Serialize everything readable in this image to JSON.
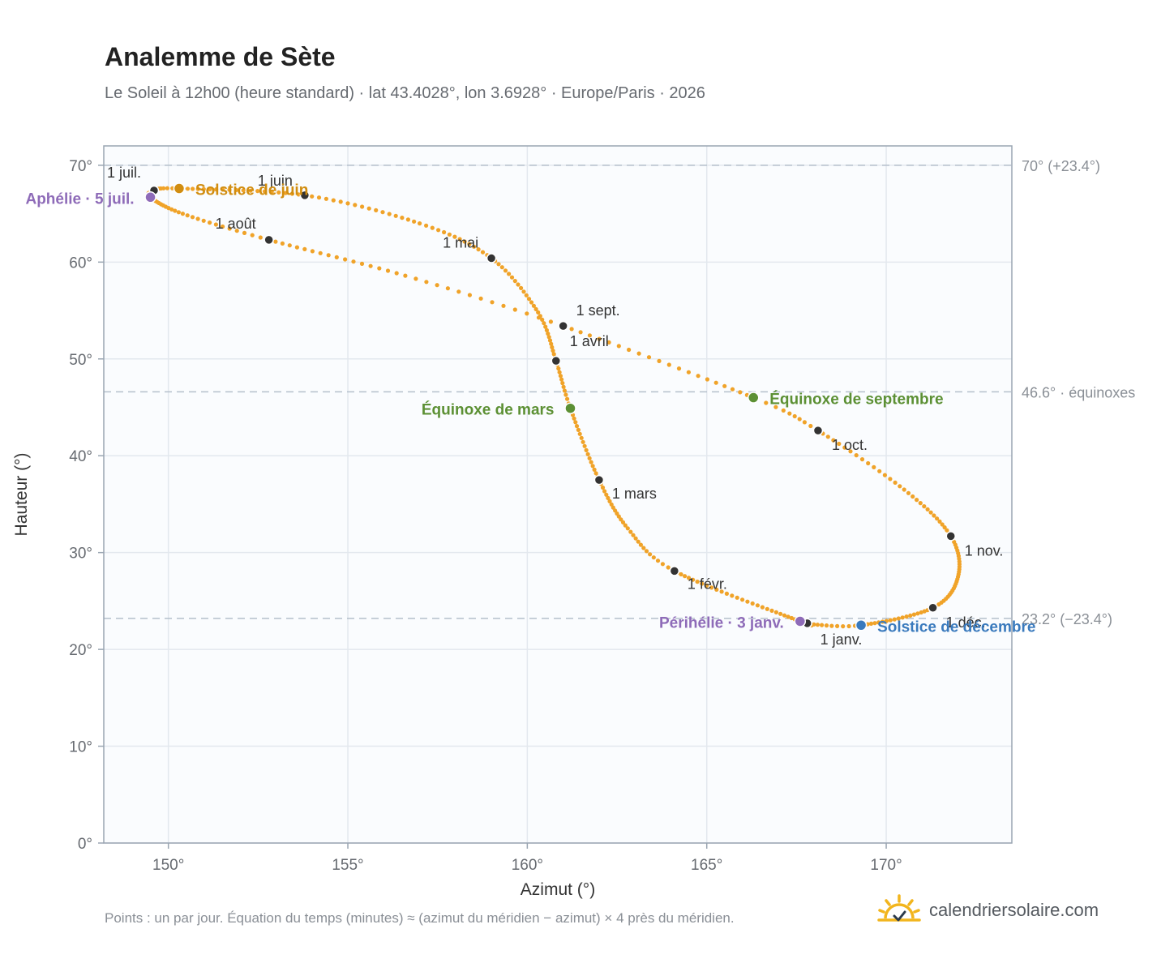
{
  "header": {
    "title": "Analemme de Sète",
    "subtitle": "Le Soleil à 12h00 (heure standard) · lat 43.4028°, lon 3.6928° · Europe/Paris · 2026"
  },
  "footer": {
    "note": "Points : un par jour. Équation du temps (minutes) ≈ (azimut du méridien − azimut) × 4 près du méridien.",
    "brand": "calendriersolaire.com"
  },
  "icons": {
    "brand": "sun-logo-icon"
  },
  "colors": {
    "curve": "#f0a329",
    "month_marker": "#333333",
    "aphelion": "#8e6bb8",
    "june_solstice": "#d18d10",
    "march_equinox": "#5c9034",
    "september_equinox": "#5c9034",
    "december_solstice": "#3a7abd",
    "perihelion": "#8e6bb8",
    "grid": "#e3e8ee",
    "reference_line": "#b5c0cc",
    "plot_background": "#fafcfe"
  },
  "chart_data": {
    "type": "scatter",
    "xlabel": "Azimut (°)",
    "ylabel": "Hauteur (°)",
    "xlim": [
      148.2,
      173.5
    ],
    "ylim": [
      0,
      72
    ],
    "xticks": [
      150,
      155,
      160,
      165,
      170
    ],
    "xtick_labels": [
      "150°",
      "155°",
      "160°",
      "165°",
      "170°"
    ],
    "yticks": [
      0,
      10,
      20,
      30,
      40,
      50,
      60,
      70
    ],
    "ytick_labels": [
      "0°",
      "10°",
      "20°",
      "30°",
      "40°",
      "50°",
      "60°",
      "70°"
    ],
    "grid": true,
    "reference_lines": [
      {
        "y": 70.0,
        "label": "70° (+23.4°)"
      },
      {
        "y": 46.6,
        "label": "46.6° · équinoxes"
      },
      {
        "y": 23.2,
        "label": "23.2° (−23.4°)"
      }
    ],
    "month_markers": [
      {
        "label": "1 janv.",
        "x": 167.8,
        "y": 22.7
      },
      {
        "label": "1 févr.",
        "x": 164.1,
        "y": 28.1
      },
      {
        "label": "1 mars",
        "x": 162.0,
        "y": 37.5
      },
      {
        "label": "1 avril",
        "x": 160.8,
        "y": 49.8
      },
      {
        "label": "1 mai",
        "x": 159.0,
        "y": 60.4
      },
      {
        "label": "1 juin",
        "x": 153.8,
        "y": 66.9
      },
      {
        "label": "1 juil.",
        "x": 149.6,
        "y": 67.4
      },
      {
        "label": "1 août",
        "x": 152.8,
        "y": 62.3
      },
      {
        "label": "1 sept.",
        "x": 161.0,
        "y": 53.4
      },
      {
        "label": "1 oct.",
        "x": 168.1,
        "y": 42.6
      },
      {
        "label": "1 nov.",
        "x": 171.8,
        "y": 31.7
      },
      {
        "label": "1 déc.",
        "x": 171.3,
        "y": 24.3
      }
    ],
    "events": [
      {
        "label": "Aphélie · 5 juil.",
        "x": 149.5,
        "y": 66.7
      },
      {
        "label": "Solstice de juin",
        "x": 150.3,
        "y": 67.6
      },
      {
        "label": "Équinoxe de mars",
        "x": 161.2,
        "y": 44.9
      },
      {
        "label": "Équinoxe de septembre",
        "x": 166.3,
        "y": 46.0
      },
      {
        "label": "Solstice de décembre",
        "x": 169.3,
        "y": 22.5
      },
      {
        "label": "Périhélie · 3 janv.",
        "x": 167.6,
        "y": 22.9
      }
    ],
    "path_days": [
      {
        "day": 1,
        "x": 167.8,
        "y": 22.7
      },
      {
        "day": 3,
        "x": 167.6,
        "y": 22.9
      },
      {
        "day": 32,
        "x": 164.1,
        "y": 28.1
      },
      {
        "day": 45,
        "x": 162.8,
        "y": 32.5
      },
      {
        "day": 60,
        "x": 162.0,
        "y": 37.5
      },
      {
        "day": 79,
        "x": 161.2,
        "y": 44.9
      },
      {
        "day": 91,
        "x": 160.8,
        "y": 49.8
      },
      {
        "day": 105,
        "x": 160.3,
        "y": 54.8
      },
      {
        "day": 121,
        "x": 159.0,
        "y": 60.4
      },
      {
        "day": 135,
        "x": 157.0,
        "y": 64.0
      },
      {
        "day": 152,
        "x": 153.8,
        "y": 66.9
      },
      {
        "day": 172,
        "x": 150.3,
        "y": 67.6
      },
      {
        "day": 182,
        "x": 149.6,
        "y": 67.4
      },
      {
        "day": 186,
        "x": 149.5,
        "y": 66.7
      },
      {
        "day": 200,
        "x": 150.4,
        "y": 65.0
      },
      {
        "day": 213,
        "x": 152.8,
        "y": 62.3
      },
      {
        "day": 230,
        "x": 156.6,
        "y": 58.6
      },
      {
        "day": 244,
        "x": 161.0,
        "y": 53.4
      },
      {
        "day": 265,
        "x": 166.3,
        "y": 46.0
      },
      {
        "day": 274,
        "x": 168.1,
        "y": 42.6
      },
      {
        "day": 290,
        "x": 170.5,
        "y": 36.5
      },
      {
        "day": 305,
        "x": 171.8,
        "y": 31.7
      },
      {
        "day": 320,
        "x": 172.0,
        "y": 27.5
      },
      {
        "day": 335,
        "x": 171.3,
        "y": 24.3
      },
      {
        "day": 355,
        "x": 169.3,
        "y": 22.5
      },
      {
        "day": 365,
        "x": 167.9,
        "y": 22.6
      }
    ]
  }
}
